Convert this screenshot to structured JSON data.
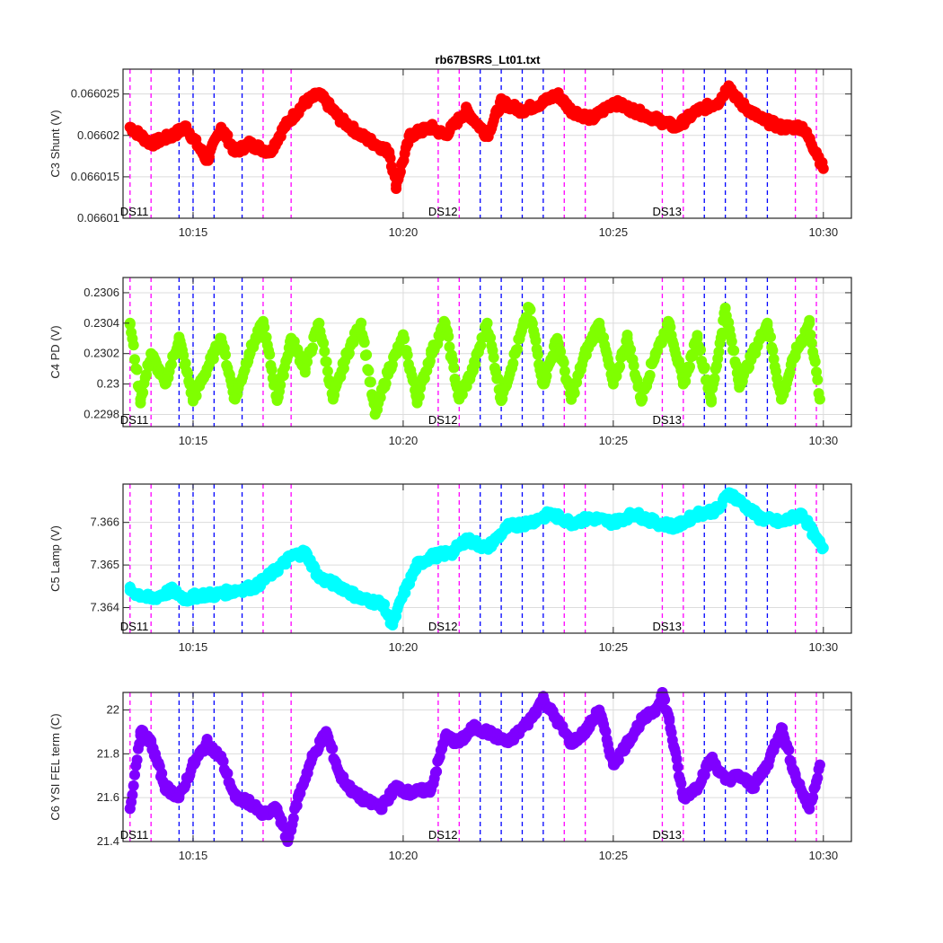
{
  "chart_data": [
    {
      "type": "scatter",
      "title": "rb67BSRS_Lt01.txt",
      "ylabel": "C3 Shunt (V)",
      "color": "#ff0000",
      "ylim": [
        0.06601,
        0.066028
      ],
      "yticks": [
        0.06601,
        0.066015,
        0.06602,
        0.066025
      ],
      "ytick_labels": [
        "0.06601",
        "0.066015",
        "0.06602",
        "0.066025"
      ],
      "x": [
        "10:13:30",
        "10:14:00",
        "10:14:30",
        "10:14:50",
        "10:15:20",
        "10:15:40",
        "10:16:00",
        "10:16:20",
        "10:16:50",
        "10:17:10",
        "10:17:20",
        "10:17:40",
        "10:18:00",
        "10:18:30",
        "10:19:00",
        "10:19:20",
        "10:19:40",
        "10:19:50",
        "10:20:10",
        "10:20:40",
        "10:21:00",
        "10:21:30",
        "10:22:00",
        "10:22:20",
        "10:22:50",
        "10:23:20",
        "10:23:40",
        "10:24:00",
        "10:24:30",
        "10:25:00",
        "10:25:30",
        "10:26:00",
        "10:26:30",
        "10:27:00",
        "10:27:30",
        "10:27:45",
        "10:28:00",
        "10:28:30",
        "10:29:00",
        "10:29:30",
        "10:29:50",
        "10:30:00"
      ],
      "y": [
        0.066021,
        0.066019,
        0.06602,
        0.066021,
        0.066017,
        0.066021,
        0.066018,
        0.066019,
        0.066018,
        0.066021,
        0.066022,
        0.066024,
        0.066025,
        0.066022,
        0.06602,
        0.066019,
        0.066018,
        0.066014,
        0.06602,
        0.066021,
        0.06602,
        0.066023,
        0.06602,
        0.066024,
        0.066023,
        0.066024,
        0.066025,
        0.066023,
        0.066022,
        0.066024,
        0.066023,
        0.066022,
        0.066021,
        0.066023,
        0.066024,
        0.066026,
        0.066024,
        0.066022,
        0.066021,
        0.066021,
        0.066018,
        0.066016
      ],
      "x_tick_labels": [
        "10:15",
        "10:20",
        "10:25",
        "10:30"
      ],
      "annotations": [
        "DS11",
        "DS12",
        "DS13"
      ]
    },
    {
      "type": "scatter",
      "ylabel": "C4 PD (V)",
      "color": "#7fff00",
      "ylim": [
        0.22972,
        0.2307
      ],
      "yticks": [
        0.2298,
        0.23,
        0.2302,
        0.2304,
        0.2306
      ],
      "ytick_labels": [
        "0.2298",
        "0.23",
        "0.2302",
        "0.2304",
        "0.2306"
      ],
      "x": [
        "10:13:30",
        "10:13:45",
        "10:14:00",
        "10:14:20",
        "10:14:40",
        "10:15:00",
        "10:15:20",
        "10:15:40",
        "10:16:00",
        "10:16:20",
        "10:16:40",
        "10:17:00",
        "10:17:20",
        "10:17:40",
        "10:18:00",
        "10:18:20",
        "10:18:40",
        "10:19:00",
        "10:19:20",
        "10:19:40",
        "10:20:00",
        "10:20:20",
        "10:20:40",
        "10:21:00",
        "10:21:20",
        "10:21:40",
        "10:22:00",
        "10:22:20",
        "10:22:40",
        "10:23:00",
        "10:23:20",
        "10:23:40",
        "10:24:00",
        "10:24:20",
        "10:24:40",
        "10:25:00",
        "10:25:20",
        "10:25:40",
        "10:26:00",
        "10:26:20",
        "10:26:40",
        "10:27:00",
        "10:27:20",
        "10:27:40",
        "10:28:00",
        "10:28:20",
        "10:28:40",
        "10:29:00",
        "10:29:20",
        "10:29:40",
        "10:29:55"
      ],
      "y": [
        0.2304,
        0.2299,
        0.2302,
        0.23,
        0.2303,
        0.2299,
        0.2301,
        0.2303,
        0.2299,
        0.2302,
        0.2304,
        0.2299,
        0.2303,
        0.2301,
        0.2304,
        0.2299,
        0.2302,
        0.2304,
        0.2298,
        0.2301,
        0.2303,
        0.2299,
        0.2302,
        0.2304,
        0.2299,
        0.2301,
        0.2304,
        0.2299,
        0.2302,
        0.2305,
        0.23,
        0.2303,
        0.2299,
        0.2302,
        0.2304,
        0.23,
        0.2303,
        0.2299,
        0.2302,
        0.2304,
        0.23,
        0.2303,
        0.2299,
        0.2305,
        0.23,
        0.2302,
        0.2304,
        0.2299,
        0.2302,
        0.2304,
        0.2299
      ],
      "x_tick_labels": [
        "10:15",
        "10:20",
        "10:25",
        "10:30"
      ],
      "annotations": [
        "DS11",
        "DS12",
        "DS13"
      ]
    },
    {
      "type": "scatter",
      "ylabel": "C5 Lamp (V)",
      "color": "#00ffff",
      "ylim": [
        7.3634,
        7.3669
      ],
      "yticks": [
        7.364,
        7.365,
        7.366
      ],
      "ytick_labels": [
        "7.364",
        "7.365",
        "7.366"
      ],
      "x": [
        "10:13:30",
        "10:14:00",
        "10:14:30",
        "10:14:50",
        "10:15:10",
        "10:15:30",
        "10:16:00",
        "10:16:30",
        "10:17:00",
        "10:17:20",
        "10:17:40",
        "10:18:00",
        "10:18:30",
        "10:19:00",
        "10:19:30",
        "10:19:45",
        "10:20:00",
        "10:20:20",
        "10:20:40",
        "10:21:10",
        "10:21:30",
        "10:22:00",
        "10:22:30",
        "10:23:00",
        "10:23:30",
        "10:24:00",
        "10:24:30",
        "10:25:00",
        "10:25:30",
        "10:26:00",
        "10:26:30",
        "10:27:00",
        "10:27:30",
        "10:27:45",
        "10:28:00",
        "10:28:30",
        "10:29:00",
        "10:29:30",
        "10:29:50",
        "10:30:00"
      ],
      "y": [
        7.3644,
        7.3642,
        7.3644,
        7.3642,
        7.3643,
        7.3643,
        7.3644,
        7.3645,
        7.3649,
        7.3652,
        7.3653,
        7.3647,
        7.3645,
        7.3642,
        7.3641,
        7.3636,
        7.3643,
        7.365,
        7.3652,
        7.3653,
        7.3656,
        7.3654,
        7.3659,
        7.366,
        7.3662,
        7.366,
        7.3661,
        7.366,
        7.3662,
        7.366,
        7.3659,
        7.3662,
        7.3663,
        7.3667,
        7.3665,
        7.3661,
        7.366,
        7.3662,
        7.3656,
        7.3654
      ],
      "x_tick_labels": [
        "10:15",
        "10:20",
        "10:25",
        "10:30"
      ],
      "annotations": [
        "DS11",
        "DS12",
        "DS13"
      ]
    },
    {
      "type": "scatter",
      "ylabel": "C6 YSI FEL term (C)",
      "color": "#7f00ff",
      "ylim": [
        21.4,
        22.08
      ],
      "yticks": [
        21.4,
        21.6,
        21.8,
        22
      ],
      "ytick_labels": [
        "21.4",
        "21.6",
        "21.8",
        "22"
      ],
      "x": [
        "10:13:30",
        "10:13:45",
        "10:14:00",
        "10:14:20",
        "10:14:40",
        "10:15:00",
        "10:15:20",
        "10:15:40",
        "10:16:00",
        "10:16:20",
        "10:16:40",
        "10:17:00",
        "10:17:15",
        "10:17:30",
        "10:17:50",
        "10:18:10",
        "10:18:30",
        "10:18:50",
        "10:19:10",
        "10:19:30",
        "10:19:50",
        "10:20:10",
        "10:20:40",
        "10:21:00",
        "10:21:20",
        "10:21:40",
        "10:22:00",
        "10:22:30",
        "10:23:00",
        "10:23:20",
        "10:23:40",
        "10:24:00",
        "10:24:20",
        "10:24:40",
        "10:25:00",
        "10:25:20",
        "10:25:40",
        "10:26:00",
        "10:26:10",
        "10:26:20",
        "10:26:40",
        "10:27:00",
        "10:27:20",
        "10:27:40",
        "10:28:00",
        "10:28:20",
        "10:28:40",
        "10:29:00",
        "10:29:20",
        "10:29:40",
        "10:29:55"
      ],
      "y": [
        21.55,
        21.9,
        21.85,
        21.65,
        21.6,
        21.75,
        21.85,
        21.78,
        21.6,
        21.58,
        21.52,
        21.55,
        21.4,
        21.6,
        21.78,
        21.9,
        21.7,
        21.62,
        21.58,
        21.56,
        21.65,
        21.62,
        21.64,
        21.88,
        21.85,
        21.92,
        21.9,
        21.85,
        21.95,
        22.05,
        21.95,
        21.85,
        21.9,
        22.0,
        21.75,
        21.85,
        21.95,
        22.0,
        22.08,
        21.95,
        21.6,
        21.65,
        21.78,
        21.68,
        21.7,
        21.65,
        21.75,
        21.92,
        21.7,
        21.55,
        21.75
      ],
      "x_tick_labels": [
        "10:15",
        "10:20",
        "10:25",
        "10:30"
      ],
      "annotations": [
        "DS11",
        "DS12",
        "DS13"
      ]
    }
  ],
  "x_axis": {
    "start": "10:13:20",
    "end": "10:30:40",
    "ticks": [
      "10:15",
      "10:20",
      "10:25",
      "10:30"
    ]
  },
  "markers": {
    "magenta_color": "#ff00ff",
    "blue_color": "#0000ff",
    "magenta_times": [
      "10:13:30",
      "10:14:00",
      "10:16:40",
      "10:17:20",
      "10:20:50",
      "10:21:20",
      "10:23:50",
      "10:24:20",
      "10:26:10",
      "10:26:40",
      "10:29:20",
      "10:29:50"
    ],
    "blue_times": [
      "10:14:40",
      "10:15:00",
      "10:15:30",
      "10:16:10",
      "10:21:50",
      "10:22:20",
      "10:22:50",
      "10:23:20",
      "10:27:10",
      "10:27:40",
      "10:28:10",
      "10:28:40"
    ]
  },
  "ds_labels": [
    {
      "text": "DS11",
      "time": "10:13:30"
    },
    {
      "text": "DS12",
      "time": "10:20:50"
    },
    {
      "text": "DS13",
      "time": "10:26:10"
    }
  ]
}
